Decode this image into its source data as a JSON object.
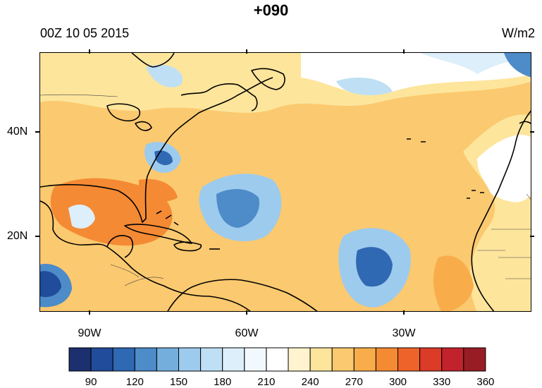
{
  "map": {
    "title": "+090",
    "date": "00Z 10 05 2015",
    "units": "W/m2",
    "lat_labels": [
      "40N",
      "20N"
    ],
    "lon_labels": [
      "90W",
      "60W",
      "30W"
    ],
    "colorbar": {
      "colors": [
        "#1c2f6e",
        "#214b9b",
        "#2f68b3",
        "#4d8bc9",
        "#74aedc",
        "#9dcbed",
        "#bfe0f4",
        "#dceffb",
        "#f2f9fe",
        "#ffffff",
        "#fff4cf",
        "#fde59c",
        "#fbc96f",
        "#f8ad4a",
        "#f58a34",
        "#ee6329",
        "#db3b27",
        "#c2222b",
        "#981c24"
      ],
      "labels": [
        "90",
        "120",
        "150",
        "180",
        "210",
        "240",
        "270",
        "300",
        "330",
        "360"
      ]
    }
  }
}
